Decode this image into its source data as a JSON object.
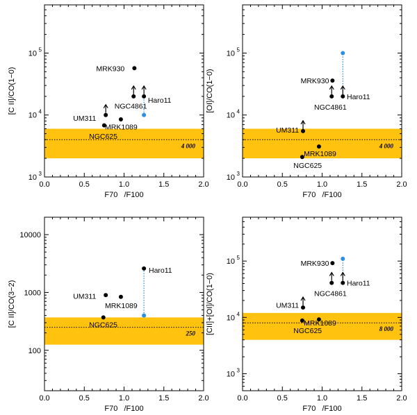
{
  "colors": {
    "band": "#ffc20e",
    "point": "#000000",
    "blue": "#2b8fe3",
    "axis": "#000000"
  },
  "chart_data": [
    {
      "type": "scatter",
      "ylabel": "[C II]/CO(1−0)",
      "xlabel": "F70   /F100",
      "xlim": [
        0,
        2.0
      ],
      "ylim": [
        1000,
        600000
      ],
      "yscale": "log",
      "xticks": [
        0.0,
        0.5,
        1.0,
        1.5,
        2.0
      ],
      "xtick_labels": [
        "0.0",
        "0.5",
        "1.0",
        "1.5",
        "2.0"
      ],
      "yticks": [
        1000,
        10000,
        100000
      ],
      "ytick_labels": [
        "10",
        "10",
        "10"
      ],
      "ytick_exps": [
        "3",
        "4",
        "5"
      ],
      "band": {
        "low": 2000,
        "high": 6000,
        "mean": 4000,
        "label": "4 000"
      },
      "points": [
        {
          "name": "MRK930",
          "x": 1.13,
          "y": 57000,
          "limit": false
        },
        {
          "name": "NGC4861",
          "x": 1.12,
          "y": 20000,
          "limit": true
        },
        {
          "name": "Haro11",
          "x": 1.25,
          "y": 20000,
          "limit": true
        },
        {
          "name": "UM311",
          "x": 0.77,
          "y": 10000,
          "limit": true
        },
        {
          "name": "MRK1089",
          "x": 0.96,
          "y": 8500,
          "limit": false
        },
        {
          "name": "NGC625",
          "x": 0.75,
          "y": 6800,
          "limit": false
        }
      ],
      "labels": [
        {
          "text": "MRK930",
          "x": 0.65,
          "y": 57000
        },
        {
          "text": "NGC4861",
          "x": 0.88,
          "y": 14000
        },
        {
          "text": "Haro11",
          "x": 1.3,
          "y": 17500
        },
        {
          "text": "UM311",
          "x": 0.36,
          "y": 9000
        },
        {
          "text": "MRK1089",
          "x": 0.76,
          "y": 6500
        },
        {
          "text": "NGC625",
          "x": 0.56,
          "y": 4600
        }
      ],
      "blue_point": {
        "x": 1.25,
        "y": 10000
      },
      "blue_link": {
        "x": 1.25,
        "y1": 10000,
        "y2": 20000
      }
    },
    {
      "type": "scatter",
      "ylabel": "[OI]/CO(1−0)",
      "xlabel": "F70   /F100",
      "xlim": [
        0,
        2.0
      ],
      "ylim": [
        1000,
        600000
      ],
      "yscale": "log",
      "xticks": [
        0.0,
        0.5,
        1.0,
        1.5,
        2.0
      ],
      "xtick_labels": [
        "0.0",
        "0.5",
        "1.0",
        "1.5",
        "2.0"
      ],
      "yticks": [
        1000,
        10000,
        100000
      ],
      "ytick_labels": [
        "10",
        "10",
        "10"
      ],
      "ytick_exps": [
        "3",
        "4",
        "5"
      ],
      "band": {
        "low": 2000,
        "high": 6000,
        "mean": 4000,
        "label": "4 000"
      },
      "points": [
        {
          "name": "MRK930",
          "x": 1.13,
          "y": 36000,
          "limit": false
        },
        {
          "name": "NGC4861",
          "x": 1.12,
          "y": 20000,
          "limit": true
        },
        {
          "name": "Haro11",
          "x": 1.26,
          "y": 20000,
          "limit": true
        },
        {
          "name": "UM311",
          "x": 0.76,
          "y": 5500,
          "limit": true
        },
        {
          "name": "MRK1089",
          "x": 0.96,
          "y": 3100,
          "limit": false
        },
        {
          "name": "NGC625",
          "x": 0.75,
          "y": 2100,
          "limit": false
        }
      ],
      "labels": [
        {
          "text": "MRK930",
          "x": 0.73,
          "y": 36000
        },
        {
          "text": "NGC4861",
          "x": 0.9,
          "y": 13500
        },
        {
          "text": "Haro11",
          "x": 1.31,
          "y": 20000
        },
        {
          "text": "UM311",
          "x": 0.42,
          "y": 5800
        },
        {
          "text": "MRK1089",
          "x": 0.77,
          "y": 2400
        },
        {
          "text": "NGC625",
          "x": 0.64,
          "y": 1550
        }
      ],
      "blue_point": {
        "x": 1.26,
        "y": 100000
      },
      "blue_link": {
        "x": 1.26,
        "y1": 20000,
        "y2": 100000
      }
    },
    {
      "type": "scatter",
      "ylabel": "[C II]/CO(3−2)",
      "xlabel": "F70   /F100",
      "xlim": [
        0,
        2.0
      ],
      "ylim": [
        20,
        20000
      ],
      "yscale": "log",
      "xticks": [
        0.0,
        0.5,
        1.0,
        1.5,
        2.0
      ],
      "xtick_labels": [
        "0.0",
        "0.5",
        "1.0",
        "1.5",
        "2.0"
      ],
      "yticks": [
        100,
        1000,
        10000
      ],
      "ytick_labels": [
        "100",
        "1000",
        "10000"
      ],
      "ytick_exps": [
        "",
        "",
        ""
      ],
      "band": {
        "low": 125,
        "high": 370,
        "mean": 250,
        "label": "250"
      },
      "points": [
        {
          "name": "Haro11",
          "x": 1.25,
          "y": 2600,
          "limit": false
        },
        {
          "name": "UM311",
          "x": 0.77,
          "y": 900,
          "limit": false
        },
        {
          "name": "MRK1089",
          "x": 0.96,
          "y": 840,
          "limit": false
        },
        {
          "name": "NGC625",
          "x": 0.74,
          "y": 370,
          "limit": false
        }
      ],
      "labels": [
        {
          "text": "Haro11",
          "x": 1.31,
          "y": 2450
        },
        {
          "text": "UM311",
          "x": 0.36,
          "y": 870
        },
        {
          "text": "MRK1089",
          "x": 0.76,
          "y": 600
        },
        {
          "text": "NGC625",
          "x": 0.56,
          "y": 280
        }
      ],
      "blue_point": {
        "x": 1.25,
        "y": 400
      },
      "blue_link": {
        "x": 1.25,
        "y1": 400,
        "y2": 2600
      }
    },
    {
      "type": "scatter",
      "ylabel": "[CII]+[OI]/CO(1−0)",
      "xlabel": "F70   /F100",
      "xlim": [
        0,
        2.0
      ],
      "ylim": [
        500,
        600000
      ],
      "yscale": "log",
      "xticks": [
        0.0,
        0.5,
        1.0,
        1.5,
        2.0
      ],
      "xtick_labels": [
        "0.0",
        "0.5",
        "1.0",
        "1.5",
        "2.0"
      ],
      "yticks": [
        1000,
        10000,
        100000
      ],
      "ytick_labels": [
        "10",
        "10",
        "10"
      ],
      "ytick_exps": [
        "3",
        "4",
        "5"
      ],
      "band": {
        "low": 4000,
        "high": 12000,
        "mean": 8000,
        "label": "8 000"
      },
      "points": [
        {
          "name": "MRK930",
          "x": 1.13,
          "y": 92000,
          "limit": false
        },
        {
          "name": "NGC4861",
          "x": 1.12,
          "y": 41000,
          "limit": true
        },
        {
          "name": "Haro11",
          "x": 1.26,
          "y": 41000,
          "limit": true
        },
        {
          "name": "UM311",
          "x": 0.76,
          "y": 15000,
          "limit": true
        },
        {
          "name": "MRK1089",
          "x": 0.96,
          "y": 9200,
          "limit": false
        },
        {
          "name": "NGC625",
          "x": 0.75,
          "y": 8800,
          "limit": false
        }
      ],
      "labels": [
        {
          "text": "MRK930",
          "x": 0.73,
          "y": 92000
        },
        {
          "text": "NGC4861",
          "x": 0.9,
          "y": 27000
        },
        {
          "text": "Haro11",
          "x": 1.31,
          "y": 41000
        },
        {
          "text": "UM311",
          "x": 0.42,
          "y": 16500
        },
        {
          "text": "MRK1089",
          "x": 0.77,
          "y": 8000
        },
        {
          "text": "NGC625",
          "x": 0.64,
          "y": 5900
        }
      ],
      "blue_point": {
        "x": 1.26,
        "y": 110000
      },
      "blue_link": {
        "x": 1.26,
        "y1": 41000,
        "y2": 110000
      }
    }
  ]
}
